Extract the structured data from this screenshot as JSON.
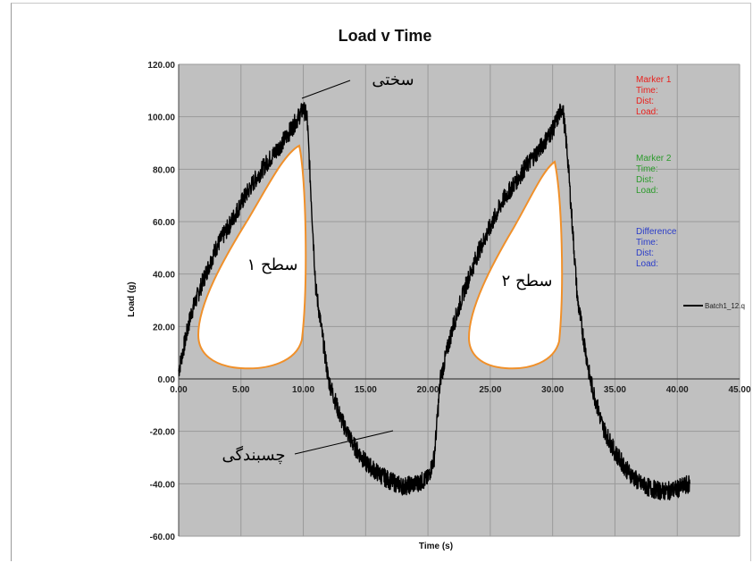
{
  "chart_data": {
    "type": "line",
    "title": "Load v Time",
    "xlabel": "Time (s)",
    "ylabel": "Load (g)",
    "xlim": [
      0,
      45
    ],
    "ylim": [
      -60,
      120
    ],
    "x_ticks": [
      "0.00",
      "5.00",
      "10.00",
      "15.00",
      "20.00",
      "25.00",
      "30.00",
      "35.00",
      "40.00",
      "45.00"
    ],
    "y_ticks": [
      "120.00",
      "100.00",
      "80.00",
      "60.00",
      "40.00",
      "20.00",
      "0.00",
      "-20.00",
      "-40.00",
      "-60.00"
    ],
    "grid": true,
    "series": [
      {
        "name": "Batch1_12.q",
        "x": [
          0,
          1,
          2,
          3,
          4,
          5,
          6,
          7,
          8,
          9,
          10,
          10.3,
          11,
          12,
          13,
          14,
          15,
          16,
          17,
          18,
          19,
          20,
          20.5,
          21,
          22,
          23,
          24,
          25,
          26,
          27,
          28,
          29,
          30,
          30.8,
          31.2,
          32,
          33,
          34,
          35,
          36,
          37,
          38,
          39,
          40,
          41
        ],
        "y": [
          3,
          25,
          38,
          50,
          58,
          67,
          75,
          82,
          88,
          95,
          103,
          100,
          35,
          0,
          -15,
          -25,
          -32,
          -36,
          -39,
          -41,
          -40,
          -38,
          -30,
          0,
          20,
          35,
          48,
          58,
          68,
          75,
          82,
          88,
          95,
          104,
          85,
          30,
          0,
          -18,
          -28,
          -35,
          -40,
          -42,
          -43,
          -42,
          -40
        ],
        "color": "#000000"
      }
    ],
    "legend": {
      "position": "right",
      "label": "Batch1_12.q"
    },
    "marker_panel": {
      "marker1": {
        "title": "Marker  1",
        "lines": [
          "Time:",
          "Dist:",
          "Load:"
        ],
        "color": "#e8201c"
      },
      "marker2": {
        "title": "Marker  2",
        "lines": [
          "Time:",
          "Dist:",
          "Load:"
        ],
        "color": "#2a9a2a"
      },
      "difference": {
        "title": "Difference",
        "lines": [
          "Time:",
          "Dist:",
          "Load:"
        ],
        "color": "#2a3cc8"
      }
    },
    "annotations": {
      "hardness": "سختی",
      "area1": "سطح ۱",
      "area2": "سطح ۲",
      "adhesiveness": "چسبندگی"
    },
    "colors": {
      "plot_bg": "#c0c0c0",
      "grid": "#9a9a9a",
      "area_outline": "#f0902a",
      "area_fill": "#ffffff"
    }
  }
}
